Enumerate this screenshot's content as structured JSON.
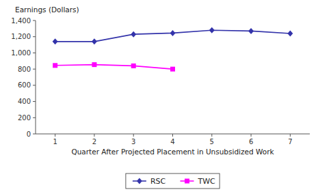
{
  "chart_data": {
    "type": "line",
    "xlabel": "Quarter After Projected Placement in Unsubsidized Work",
    "ylabel": "Earnings (Dollars)",
    "x": [
      1,
      2,
      3,
      4,
      5,
      6,
      7
    ],
    "series": [
      {
        "name": "RSC",
        "color": "#3333AA",
        "marker": "diamond",
        "values": [
          1140,
          1140,
          1230,
          1245,
          1280,
          1270,
          1240
        ]
      },
      {
        "name": "TWC",
        "color": "#FF00FF",
        "marker": "square",
        "values": [
          845,
          855,
          840,
          800,
          null,
          null,
          null
        ]
      }
    ],
    "xlim": [
      0.5,
      7.5
    ],
    "xticks": [
      1,
      2,
      3,
      4,
      5,
      6,
      7
    ],
    "ylim": [
      0,
      1400
    ],
    "yticks": [
      0,
      200,
      400,
      600,
      800,
      {
        "value": 1000,
        "label": "1,000"
      },
      {
        "value": 1200,
        "label": "1,200"
      },
      {
        "value": 1400,
        "label": "1,400"
      }
    ],
    "grid": false,
    "legend": "bottom"
  }
}
